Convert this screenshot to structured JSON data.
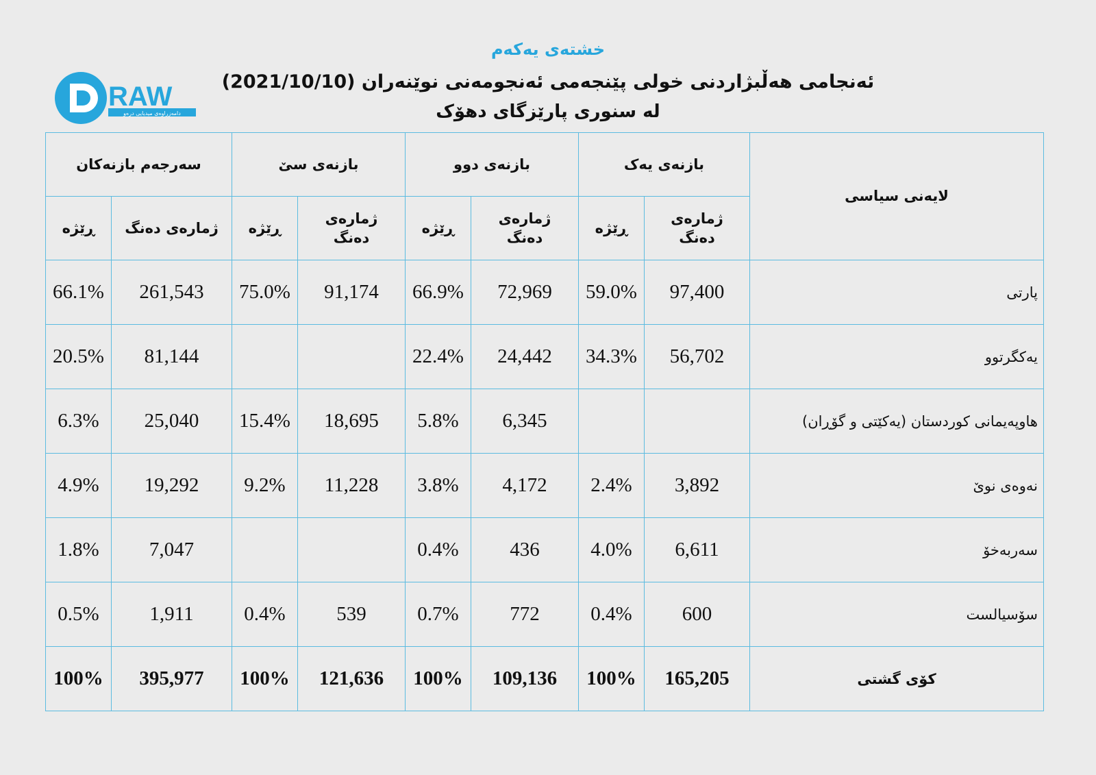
{
  "header": {
    "table_label": "خشتەی یەکەم",
    "title": "ئەنجامی هەڵبژاردنی خولی پێنجەمی ئەنجومەنی نوێنەران (2021/10/10)",
    "subtitle": "لە سنوری پارێزگای دهۆک",
    "logo_text": "DRAW",
    "logo_tagline": "دامەزراوەی میدیایی درەو"
  },
  "colors": {
    "accent": "#27a6dc",
    "border": "#5bbbe0",
    "background": "#ebebeb"
  },
  "table": {
    "party_header": "لایەنی سیاسی",
    "zones": [
      "بازنەی یەک",
      "بازنەی دوو",
      "بازنەی سێ",
      "سەرجەم بازنەکان"
    ],
    "votes_header": "ژمارەی دەنگ",
    "pct_header": "ڕێژە",
    "rows": [
      {
        "party": "پارتی",
        "cells": [
          "97,400",
          "59.0%",
          "72,969",
          "66.9%",
          "91,174",
          "75.0%",
          "261,543",
          "66.1%"
        ]
      },
      {
        "party": "یەکگرتوو",
        "cells": [
          "56,702",
          "34.3%",
          "24,442",
          "22.4%",
          "",
          "",
          "81,144",
          "20.5%"
        ]
      },
      {
        "party": "هاوپەیمانی کوردستان (یەکێتی و گۆڕان)",
        "cells": [
          "",
          "",
          "6,345",
          "5.8%",
          "18,695",
          "15.4%",
          "25,040",
          "6.3%"
        ]
      },
      {
        "party": "نەوەی نوێ",
        "cells": [
          "3,892",
          "2.4%",
          "4,172",
          "3.8%",
          "11,228",
          "9.2%",
          "19,292",
          "4.9%"
        ]
      },
      {
        "party": "سەربەخۆ",
        "cells": [
          "6,611",
          "4.0%",
          "436",
          "0.4%",
          "",
          "",
          "7,047",
          "1.8%"
        ]
      },
      {
        "party": "سۆسیالست",
        "cells": [
          "600",
          "0.4%",
          "772",
          "0.7%",
          "539",
          "0.4%",
          "1,911",
          "0.5%"
        ]
      }
    ],
    "total": {
      "party": "کۆی گشتی",
      "cells": [
        "165,205",
        "100%",
        "109,136",
        "100%",
        "121,636",
        "100%",
        "395,977",
        "100%"
      ]
    }
  }
}
